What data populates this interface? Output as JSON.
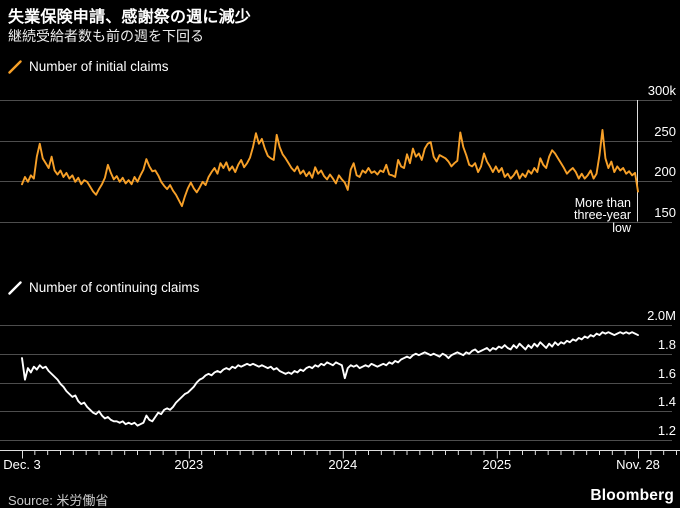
{
  "header": {
    "title": "失業保険申請、感謝祭の週に減少",
    "subtitle": "継続受給者数も前の週を下回る"
  },
  "source": {
    "label": "Source: 米労働省"
  },
  "brand": {
    "logo": "Bloomberg"
  },
  "colors": {
    "background": "#000000",
    "accent_orange": "#F7A028",
    "line_white": "#FFFFFF",
    "grid": "#4D4D4D",
    "axis": "#DDDDDD",
    "tick_label": "#FFFFFF"
  },
  "x_axis": {
    "tick_labels": [
      "Dec. 3",
      "2023",
      "2024",
      "2025",
      "Nov. 28"
    ]
  },
  "chart_data": [
    {
      "type": "line",
      "title": "Number of initial claims",
      "unit": "thousands of claims per week",
      "color": "#F7A028",
      "ylim": [
        150,
        300
      ],
      "yticks": [
        {
          "label": "300k",
          "value": 300
        },
        {
          "label": "250",
          "value": 250
        },
        {
          "label": "200",
          "value": 200
        },
        {
          "label": "150",
          "value": 150
        }
      ],
      "x_range_labels": [
        "Dec. 3",
        "Nov. 28"
      ],
      "annotation": {
        "text": "More than\nthree-year\nlow"
      },
      "end_value": 187,
      "values": [
        196,
        205,
        199,
        207,
        203,
        230,
        246,
        228,
        222,
        216,
        230,
        213,
        208,
        213,
        205,
        210,
        203,
        207,
        199,
        204,
        196,
        201,
        199,
        193,
        187,
        183,
        190,
        196,
        204,
        220,
        210,
        202,
        206,
        199,
        204,
        197,
        201,
        196,
        205,
        199,
        207,
        214,
        227,
        218,
        212,
        213,
        207,
        199,
        194,
        190,
        195,
        188,
        183,
        176,
        169,
        181,
        191,
        198,
        191,
        186,
        192,
        199,
        195,
        205,
        211,
        216,
        209,
        222,
        216,
        223,
        213,
        218,
        211,
        220,
        226,
        217,
        222,
        229,
        242,
        259,
        246,
        252,
        240,
        231,
        228,
        226,
        257,
        242,
        233,
        228,
        222,
        216,
        212,
        218,
        209,
        213,
        206,
        211,
        204,
        217,
        209,
        213,
        206,
        202,
        208,
        203,
        197,
        207,
        202,
        198,
        189,
        214,
        222,
        207,
        205,
        213,
        210,
        216,
        210,
        212,
        208,
        213,
        211,
        220,
        208,
        207,
        205,
        226,
        218,
        216,
        233,
        222,
        240,
        230,
        234,
        226,
        240,
        246,
        248,
        230,
        224,
        232,
        230,
        228,
        224,
        218,
        222,
        225,
        260,
        242,
        232,
        220,
        218,
        222,
        211,
        218,
        234,
        224,
        218,
        211,
        218,
        211,
        216,
        205,
        209,
        203,
        207,
        213,
        203,
        209,
        205,
        213,
        209,
        216,
        211,
        228,
        220,
        216,
        230,
        238,
        234,
        228,
        222,
        216,
        209,
        213,
        216,
        211,
        203,
        209,
        203,
        207,
        213,
        203,
        209,
        232,
        263,
        228,
        216,
        224,
        211,
        218,
        213,
        216,
        209,
        212,
        207,
        210,
        187
      ]
    },
    {
      "type": "line",
      "title": "Number of continuing claims",
      "unit": "millions of claims per week",
      "color": "#FFFFFF",
      "ylim": [
        1.2,
        2.0
      ],
      "yticks": [
        {
          "label": "2.0M",
          "value": 2.0
        },
        {
          "label": "1.8",
          "value": 1.8
        },
        {
          "label": "1.6",
          "value": 1.6
        },
        {
          "label": "1.4",
          "value": 1.4
        },
        {
          "label": "1.2",
          "value": 1.2
        }
      ],
      "x_range_labels": [
        "Dec. 3",
        "Nov. 28"
      ],
      "end_value": 1.93,
      "values": [
        1.77,
        1.62,
        1.7,
        1.67,
        1.71,
        1.69,
        1.72,
        1.7,
        1.71,
        1.68,
        1.66,
        1.64,
        1.62,
        1.59,
        1.57,
        1.54,
        1.52,
        1.5,
        1.51,
        1.47,
        1.45,
        1.46,
        1.43,
        1.41,
        1.39,
        1.38,
        1.4,
        1.37,
        1.35,
        1.36,
        1.34,
        1.33,
        1.33,
        1.32,
        1.33,
        1.31,
        1.32,
        1.31,
        1.32,
        1.3,
        1.31,
        1.32,
        1.37,
        1.34,
        1.33,
        1.36,
        1.39,
        1.38,
        1.41,
        1.42,
        1.41,
        1.43,
        1.46,
        1.48,
        1.5,
        1.52,
        1.53,
        1.55,
        1.57,
        1.6,
        1.62,
        1.63,
        1.65,
        1.66,
        1.65,
        1.67,
        1.68,
        1.67,
        1.69,
        1.7,
        1.69,
        1.71,
        1.7,
        1.72,
        1.71,
        1.72,
        1.73,
        1.72,
        1.73,
        1.72,
        1.71,
        1.72,
        1.71,
        1.7,
        1.71,
        1.69,
        1.7,
        1.68,
        1.67,
        1.66,
        1.67,
        1.66,
        1.68,
        1.67,
        1.69,
        1.68,
        1.7,
        1.71,
        1.7,
        1.72,
        1.71,
        1.73,
        1.72,
        1.74,
        1.73,
        1.72,
        1.74,
        1.73,
        1.72,
        1.63,
        1.7,
        1.72,
        1.71,
        1.72,
        1.7,
        1.71,
        1.72,
        1.71,
        1.73,
        1.72,
        1.71,
        1.72,
        1.73,
        1.72,
        1.74,
        1.73,
        1.75,
        1.74,
        1.76,
        1.77,
        1.78,
        1.77,
        1.79,
        1.8,
        1.79,
        1.8,
        1.81,
        1.8,
        1.79,
        1.8,
        1.79,
        1.78,
        1.8,
        1.79,
        1.77,
        1.79,
        1.8,
        1.81,
        1.8,
        1.79,
        1.81,
        1.8,
        1.82,
        1.83,
        1.81,
        1.82,
        1.83,
        1.84,
        1.82,
        1.84,
        1.83,
        1.85,
        1.84,
        1.86,
        1.84,
        1.83,
        1.86,
        1.84,
        1.87,
        1.85,
        1.83,
        1.86,
        1.84,
        1.87,
        1.85,
        1.88,
        1.86,
        1.84,
        1.87,
        1.85,
        1.88,
        1.86,
        1.88,
        1.87,
        1.89,
        1.88,
        1.9,
        1.89,
        1.91,
        1.9,
        1.92,
        1.91,
        1.93,
        1.92,
        1.94,
        1.93,
        1.95,
        1.94,
        1.95,
        1.94,
        1.93,
        1.94,
        1.95,
        1.94,
        1.95,
        1.94,
        1.95,
        1.94,
        1.93
      ]
    }
  ]
}
